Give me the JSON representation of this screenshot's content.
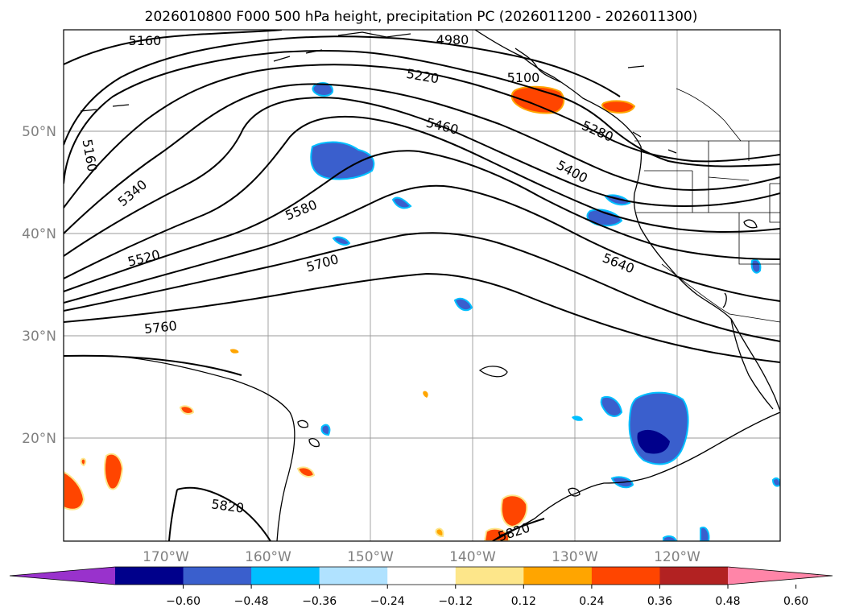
{
  "title": "2026010800 F000 500 hPa height, precipitation PC (2026011200 - 2026011300)",
  "lat_labels": [
    "50°N",
    "40°N",
    "30°N",
    "20°N"
  ],
  "lon_labels": [
    "170°W",
    "160°W",
    "150°W",
    "140°W",
    "130°W",
    "120°W"
  ],
  "contour_labels": [
    "5160",
    "4980",
    "5100",
    "5220",
    "5160",
    "5340",
    "5460",
    "5280",
    "5400",
    "5580",
    "5520",
    "5700",
    "5640",
    "5760",
    "5820",
    "5820"
  ],
  "colorbar": {
    "ticks": [
      "−0.60",
      "−0.48",
      "−0.36",
      "−0.24",
      "−0.12",
      "0.12",
      "0.24",
      "0.36",
      "0.48",
      "0.60"
    ],
    "colors": [
      "#9932cc",
      "#00008b",
      "#3a5fcd",
      "#00bfff",
      "#b0e2ff",
      "#ffffff",
      "#fde68a",
      "#ffa500",
      "#ff4500",
      "#b22222",
      "#ff85a8"
    ]
  }
}
